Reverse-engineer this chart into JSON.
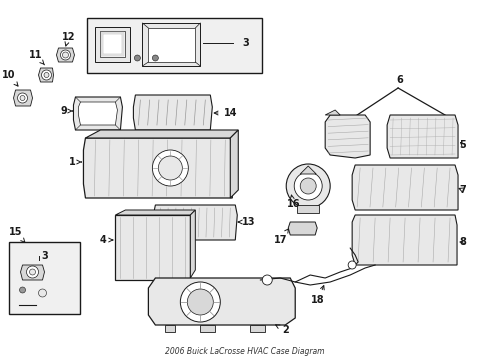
{
  "title": "2006 Buick LaCrosse HVAC Case Diagram",
  "background_color": "#ffffff",
  "line_color": "#1a1a1a",
  "fig_width": 4.89,
  "fig_height": 3.6,
  "dpi": 100
}
